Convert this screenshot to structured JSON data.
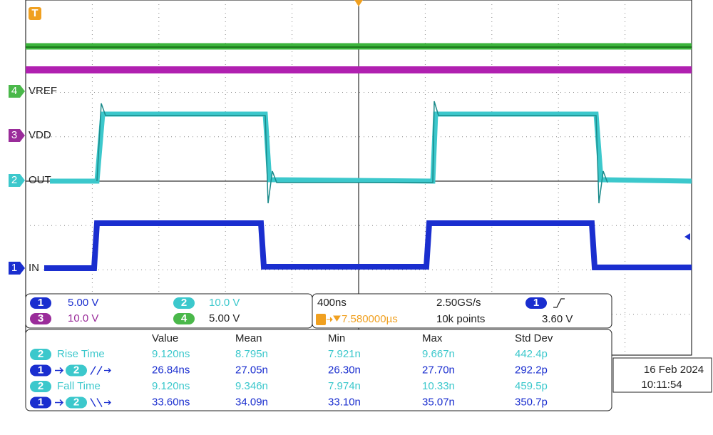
{
  "trigger_marker": "T",
  "channels": [
    {
      "number": "4",
      "label": "VREF"
    },
    {
      "number": "3",
      "label": "VDD"
    },
    {
      "number": "2",
      "label": "OUT"
    },
    {
      "number": "1",
      "label": "IN"
    }
  ],
  "vertical_settings": [
    {
      "channel": "1",
      "scale": "5.00 V"
    },
    {
      "channel": "3",
      "scale": "10.0 V"
    },
    {
      "channel": "2",
      "scale": "10.0 V"
    },
    {
      "channel": "4",
      "scale": "5.00 V"
    }
  ],
  "horizontal": {
    "time_per_div": "400ns",
    "sample_rate": "2.50GS/s",
    "trigger_position": "7.580000µs",
    "record_length": "10k points"
  },
  "trigger": {
    "channel": "1",
    "level": "3.60 V"
  },
  "measurements": {
    "headers": [
      "Value",
      "Mean",
      "Min",
      "Max",
      "Std Dev"
    ],
    "rows": [
      {
        "sources": [
          "2"
        ],
        "label": "Rise Time",
        "values": [
          "9.120ns",
          "8.795n",
          "7.921n",
          "9.667n",
          "442.4p"
        ]
      },
      {
        "sources": [
          "1",
          "2"
        ],
        "values": [
          "26.84ns",
          "27.05n",
          "26.30n",
          "27.70n",
          "292.2p"
        ]
      },
      {
        "sources": [
          "2"
        ],
        "label": "Fall Time",
        "values": [
          "9.120ns",
          "9.346n",
          "7.974n",
          "10.33n",
          "459.5p"
        ]
      },
      {
        "sources": [
          "1",
          "2"
        ],
        "values": [
          "33.60ns",
          "34.09n",
          "33.10n",
          "35.07n",
          "350.7p"
        ]
      }
    ]
  },
  "timestamp": {
    "date": "16 Feb 2024",
    "time": "10:11:54"
  }
}
